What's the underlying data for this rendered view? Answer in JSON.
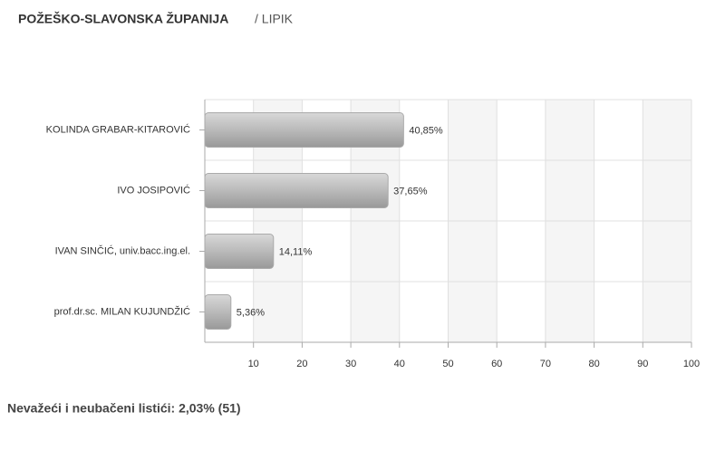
{
  "chart_data": {
    "type": "bar",
    "orientation": "horizontal",
    "title": "POŽEŠKO-SLAVONSKA ŽUPANIJA",
    "subtitle": "/ LIPIK",
    "categories": [
      "KOLINDA GRABAR-KITAROVIĆ",
      "IVO JOSIPOVIĆ",
      "IVAN SINČIĆ, univ.bacc.ing.el.",
      "prof.dr.sc. MILAN KUJUNDŽIĆ"
    ],
    "values": [
      40.85,
      37.65,
      14.11,
      5.36
    ],
    "value_labels": [
      "40,85%",
      "37,65%",
      "14,11%",
      "5,36%"
    ],
    "color": "#b5b5b5",
    "xlim": [
      0,
      100
    ],
    "xticks": [
      10,
      20,
      30,
      40,
      50,
      60,
      70,
      80,
      90,
      100
    ],
    "grid": true,
    "alternate_bands": true,
    "note": "Nevažeći i neubačeni listići: 2,03% (51)"
  }
}
